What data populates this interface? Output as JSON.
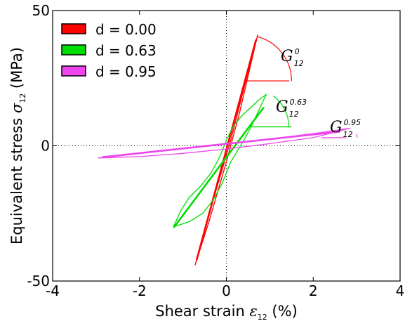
{
  "chart_data": {
    "type": "line",
    "xlabel": "Shear strain ",
    "xlabel_symbol": "ε",
    "xlabel_sub": "12",
    "xlabel_unit": " (%)",
    "ylabel": "Equivalent stress ",
    "ylabel_symbol": "σ",
    "ylabel_sub": "12",
    "ylabel_unit": " (MPa)",
    "xlim": [
      -4,
      4
    ],
    "ylim": [
      -50,
      50
    ],
    "xticks": [
      -4,
      -2,
      0,
      2,
      4
    ],
    "xtick_labels": [
      "-4",
      "-2",
      "0",
      "2",
      "4"
    ],
    "yticks": [
      -50,
      0,
      50
    ],
    "ytick_labels": [
      "-50",
      "0",
      "50"
    ],
    "grid": "dotted at x=0 and y=0",
    "legend_position": "top-left",
    "series": [
      {
        "name": "d = 0.00",
        "color": "#ff0000",
        "loop_upper": [
          [
            -0.72,
            -44
          ],
          [
            -0.4,
            -28
          ],
          [
            0,
            -6
          ],
          [
            0.3,
            12
          ],
          [
            0.72,
            41
          ]
        ],
        "loop_lower": [
          [
            0.72,
            41
          ],
          [
            0.45,
            24
          ],
          [
            0.1,
            2
          ],
          [
            -0.3,
            -20
          ],
          [
            -0.72,
            -44
          ]
        ],
        "slope_line": [
          [
            -0.68,
            -42
          ],
          [
            0.68,
            39
          ]
        ]
      },
      {
        "name": "d = 0.63",
        "color": "#00dd00",
        "loop_upper": [
          [
            -1.22,
            -30
          ],
          [
            -1.05,
            -24
          ],
          [
            -0.85,
            -19
          ],
          [
            -0.6,
            -15
          ],
          [
            -0.35,
            -10
          ],
          [
            -0.15,
            -4
          ],
          [
            0,
            2
          ],
          [
            0.15,
            7
          ],
          [
            0.35,
            11
          ],
          [
            0.55,
            14
          ],
          [
            0.75,
            17
          ],
          [
            0.92,
            19
          ]
        ],
        "loop_lower": [
          [
            0.92,
            19
          ],
          [
            0.8,
            15
          ],
          [
            0.6,
            8
          ],
          [
            0.4,
            2
          ],
          [
            0.25,
            -2
          ],
          [
            0.1,
            -6
          ],
          [
            0.0,
            -10
          ],
          [
            -0.1,
            -14
          ],
          [
            -0.3,
            -20
          ],
          [
            -0.55,
            -25
          ],
          [
            -0.85,
            -28
          ],
          [
            -1.22,
            -30
          ]
        ],
        "slope_line": [
          [
            -1.2,
            -30
          ],
          [
            0.85,
            14
          ]
        ]
      },
      {
        "name": "d = 0.95",
        "color": "#ee44ee",
        "loop_upper": [
          [
            -2.95,
            -4.5
          ],
          [
            -2.0,
            -2.8
          ],
          [
            -1.0,
            -1.0
          ],
          [
            0.0,
            0.8
          ],
          [
            1.0,
            2.5
          ],
          [
            2.0,
            4.5
          ],
          [
            2.85,
            6.5
          ]
        ],
        "loop_lower": [
          [
            2.85,
            6.5
          ],
          [
            2.0,
            3.0
          ],
          [
            1.0,
            0.8
          ],
          [
            0.0,
            -1.2
          ],
          [
            -1.0,
            -2.8
          ],
          [
            -2.0,
            -4.0
          ],
          [
            -2.95,
            -4.5
          ]
        ],
        "slope_line": [
          [
            -2.85,
            -4.2
          ],
          [
            2.6,
            5.2
          ]
        ]
      }
    ],
    "annotations": [
      {
        "base": "G",
        "sub": "12",
        "sup": "0",
        "color": "#ff0000"
      },
      {
        "base": "G",
        "sub": "12",
        "sup": "0.63",
        "color": "#00dd00"
      },
      {
        "base": "G",
        "sub": "12",
        "sup": "0.95",
        "color": "#ee44ee"
      }
    ]
  }
}
